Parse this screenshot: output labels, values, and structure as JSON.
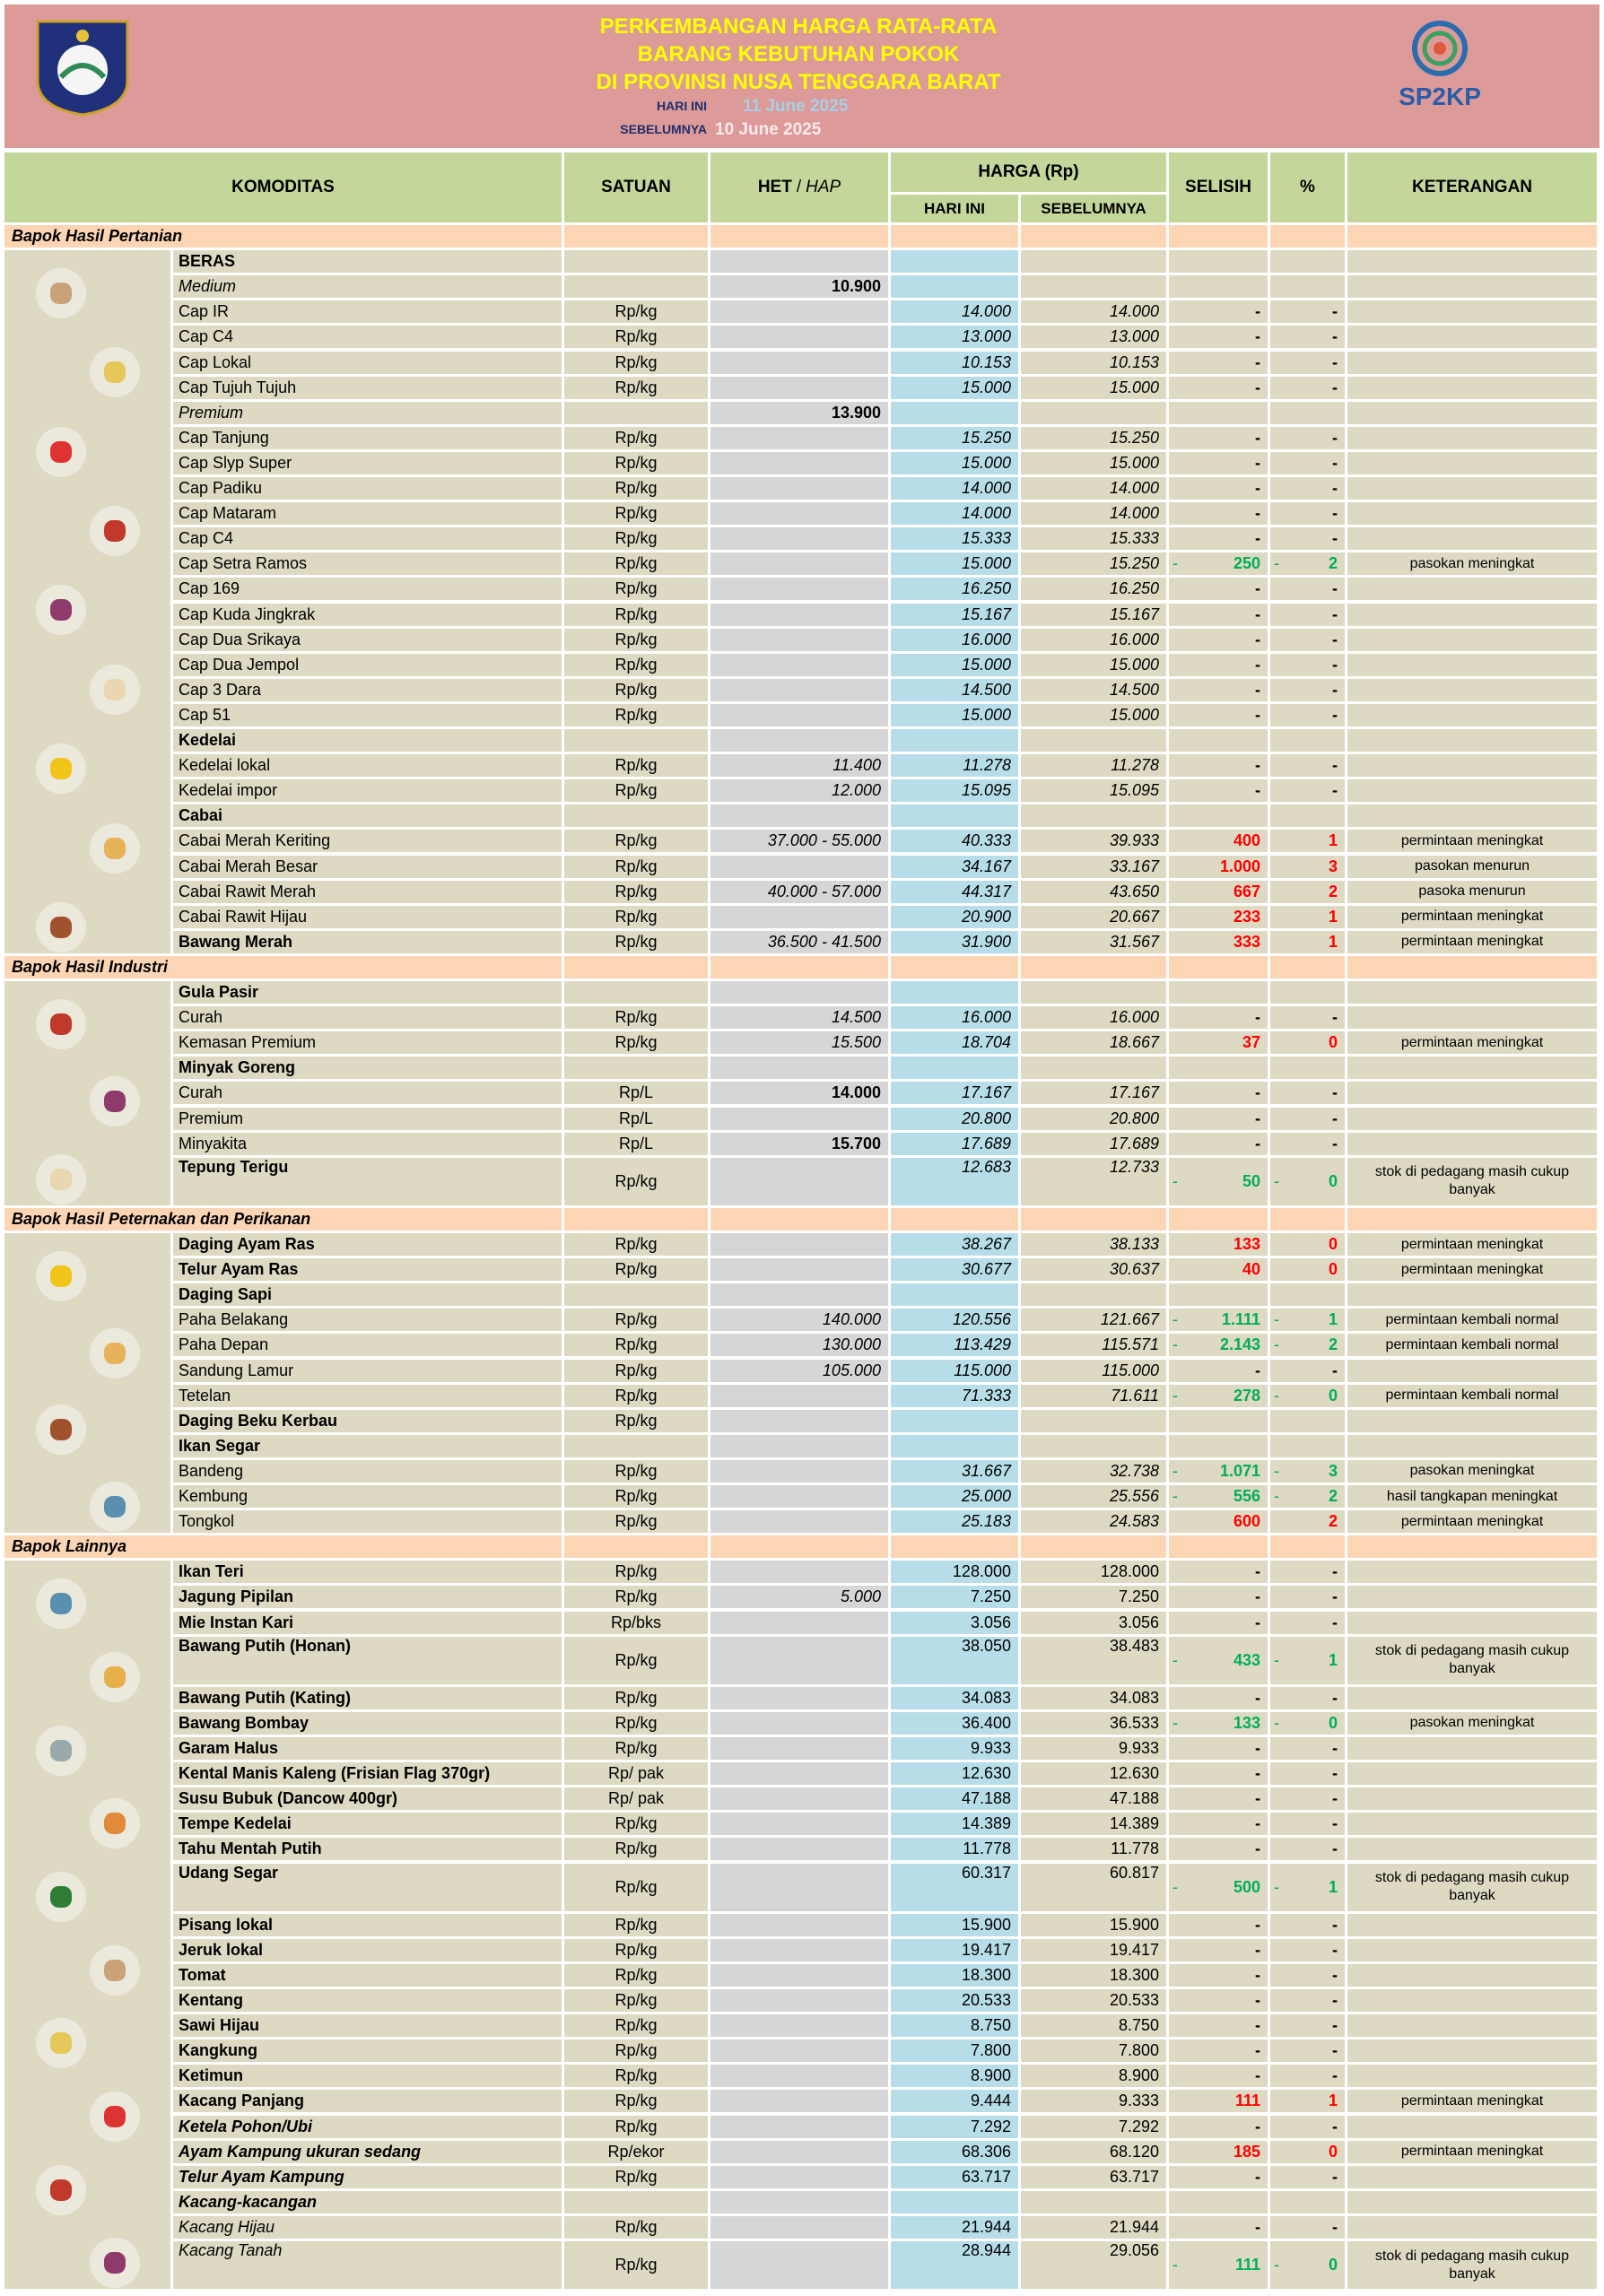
{
  "header": {
    "title_lines": [
      "PERKEMBANGAN HARGA RATA-RATA",
      "BARANG KEBUTUHAN POKOK",
      "DI PROVINSI NUSA TENGGARA BARAT"
    ],
    "today_label": "HARI INI",
    "today_date": "11 June 2025",
    "previous_label": "SEBELUMNYA",
    "previous_date": "10 June 2025",
    "logo_text": "SP2KP"
  },
  "table": {
    "columns": {
      "commodity": "KOMODITAS",
      "unit": "SATUAN",
      "het": "HET",
      "het_sep": "/",
      "hap": "HAP",
      "price": "HARGA (Rp)",
      "today": "HARI INI",
      "previous": "SEBELUMNYA",
      "diff": "SELISIH",
      "pct": "%",
      "note": "KETERANGAN"
    },
    "sections": [
      {
        "title": "Bapok Hasil Pertanian",
        "value_style": "i",
        "rows": [
          {
            "name": "BERAS",
            "style": "b"
          },
          {
            "name": "Medium",
            "style": "i",
            "het": "10.900",
            "het_style": "b"
          },
          {
            "name": "Cap IR",
            "unit": "Rp/kg",
            "today": "14.000",
            "previous": "14.000",
            "diff": "-",
            "pct": "-"
          },
          {
            "name": "Cap C4",
            "unit": "Rp/kg",
            "today": "13.000",
            "previous": "13.000",
            "diff": "-",
            "pct": "-"
          },
          {
            "name": "Cap Lokal",
            "unit": "Rp/kg",
            "today": "10.153",
            "previous": "10.153",
            "diff": "-",
            "pct": "-"
          },
          {
            "name": "Cap Tujuh Tujuh",
            "unit": "Rp/kg",
            "today": "15.000",
            "previous": "15.000",
            "diff": "-",
            "pct": "-"
          },
          {
            "name": "Premium",
            "style": "i",
            "het": "13.900",
            "het_style": "b"
          },
          {
            "name": "Cap Tanjung",
            "unit": "Rp/kg",
            "today": "15.250",
            "previous": "15.250",
            "diff": "-",
            "pct": "-"
          },
          {
            "name": "Cap Slyp Super",
            "unit": "Rp/kg",
            "today": "15.000",
            "previous": "15.000",
            "diff": "-",
            "pct": "-"
          },
          {
            "name": "Cap Padiku",
            "unit": "Rp/kg",
            "today": "14.000",
            "previous": "14.000",
            "diff": "-",
            "pct": "-"
          },
          {
            "name": "Cap Mataram",
            "unit": "Rp/kg",
            "today": "14.000",
            "previous": "14.000",
            "diff": "-",
            "pct": "-"
          },
          {
            "name": "Cap C4",
            "unit": "Rp/kg",
            "today": "15.333",
            "previous": "15.333",
            "diff": "-",
            "pct": "-"
          },
          {
            "name": "Cap Setra Ramos",
            "unit": "Rp/kg",
            "today": "15.000",
            "previous": "15.250",
            "diff_sign": "-",
            "diff": "250",
            "pct_sign": "-",
            "pct": "2",
            "note": "pasokan meningkat"
          },
          {
            "name": "Cap 169",
            "unit": "Rp/kg",
            "today": "16.250",
            "previous": "16.250",
            "diff": "-",
            "pct": "-"
          },
          {
            "name": "Cap Kuda Jingkrak",
            "unit": "Rp/kg",
            "today": "15.167",
            "previous": "15.167",
            "diff": "-",
            "pct": "-"
          },
          {
            "name": "Cap Dua Srikaya",
            "unit": "Rp/kg",
            "today": "16.000",
            "previous": "16.000",
            "diff": "-",
            "pct": "-"
          },
          {
            "name": "Cap Dua Jempol",
            "unit": "Rp/kg",
            "today": "15.000",
            "previous": "15.000",
            "diff": "-",
            "pct": "-"
          },
          {
            "name": "Cap 3 Dara",
            "unit": "Rp/kg",
            "today": "14.500",
            "previous": "14.500",
            "diff": "-",
            "pct": "-"
          },
          {
            "name": "Cap 51",
            "unit": "Rp/kg",
            "today": "15.000",
            "previous": "15.000",
            "diff": "-",
            "pct": "-"
          },
          {
            "name": "Kedelai",
            "style": "b"
          },
          {
            "name": "Kedelai lokal",
            "unit": "Rp/kg",
            "het": "11.400",
            "today": "11.278",
            "previous": "11.278",
            "diff": "-",
            "pct": "-"
          },
          {
            "name": "Kedelai impor",
            "unit": "Rp/kg",
            "het": "12.000",
            "today": "15.095",
            "previous": "15.095",
            "diff": "-",
            "pct": "-"
          },
          {
            "name": "Cabai",
            "style": "b"
          },
          {
            "name": "Cabai Merah Keriting",
            "unit": "Rp/kg",
            "het": "37.000 - 55.000",
            "today": "40.333",
            "previous": "39.933",
            "diff": "400",
            "pct": "1",
            "note": "permintaan meningkat"
          },
          {
            "name": "Cabai Merah Besar",
            "unit": "Rp/kg",
            "today": "34.167",
            "previous": "33.167",
            "diff": "1.000",
            "pct": "3",
            "note": "pasokan menurun"
          },
          {
            "name": "Cabai Rawit Merah",
            "unit": "Rp/kg",
            "het": "40.000 - 57.000",
            "today": "44.317",
            "previous": "43.650",
            "diff": "667",
            "pct": "2",
            "note": "pasoka menurun"
          },
          {
            "name": "Cabai Rawit Hijau",
            "unit": "Rp/kg",
            "today": "20.900",
            "previous": "20.667",
            "diff": "233",
            "pct": "1",
            "note": "permintaan meningkat"
          },
          {
            "name": "Bawang Merah",
            "style": "b",
            "unit": "Rp/kg",
            "het": "36.500 - 41.500",
            "today": "31.900",
            "previous": "31.567",
            "diff": "333",
            "pct": "1",
            "note": "permintaan meningkat"
          }
        ]
      },
      {
        "title": "Bapok Hasil Industri",
        "value_style": "i",
        "rows": [
          {
            "name": "Gula Pasir",
            "style": "b"
          },
          {
            "name": "Curah",
            "unit": "Rp/kg",
            "het": "14.500",
            "today": "16.000",
            "previous": "16.000",
            "diff": "-",
            "pct": "-"
          },
          {
            "name": "Kemasan Premium",
            "unit": "Rp/kg",
            "het": "15.500",
            "today": "18.704",
            "previous": "18.667",
            "diff": "37",
            "pct": "0",
            "note": "permintaan meningkat"
          },
          {
            "name": "Minyak Goreng",
            "style": "b"
          },
          {
            "name": "Curah",
            "unit": "Rp/L",
            "het": "14.000",
            "het_style": "b",
            "today": "17.167",
            "previous": "17.167",
            "diff": "-",
            "pct": "-"
          },
          {
            "name": "Premium",
            "unit": "Rp/L",
            "today": "20.800",
            "previous": "20.800",
            "diff": "-",
            "pct": "-"
          },
          {
            "name": "Minyakita",
            "unit": "Rp/L",
            "het": "15.700",
            "het_style": "b",
            "today": "17.689",
            "previous": "17.689",
            "diff": "-",
            "pct": "-"
          },
          {
            "name": "Tepung Terigu",
            "style": "b",
            "unit": "Rp/kg",
            "today": "12.683",
            "previous": "12.733",
            "diff_sign": "-",
            "diff": "50",
            "pct_sign": "-",
            "pct": "0",
            "note": "stok di pedagang masih cukup banyak"
          }
        ]
      },
      {
        "title": "Bapok Hasil Peternakan dan Perikanan",
        "value_style": "i",
        "rows": [
          {
            "name": "Daging Ayam Ras",
            "style": "b",
            "unit": "Rp/kg",
            "today": "38.267",
            "previous": "38.133",
            "diff": "133",
            "pct": "0",
            "note": "permintaan meningkat"
          },
          {
            "name": "Telur Ayam Ras",
            "style": "b",
            "unit": "Rp/kg",
            "today": "30.677",
            "previous": "30.637",
            "diff": "40",
            "pct": "0",
            "note": "permintaan meningkat"
          },
          {
            "name": "Daging Sapi",
            "style": "b"
          },
          {
            "name": "Paha Belakang",
            "unit": "Rp/kg",
            "het": "140.000",
            "today": "120.556",
            "previous": "121.667",
            "diff_sign": "-",
            "diff": "1.111",
            "pct_sign": "-",
            "pct": "1",
            "note": "permintaan kembali normal"
          },
          {
            "name": "Paha Depan",
            "unit": "Rp/kg",
            "het": "130.000",
            "today": "113.429",
            "previous": "115.571",
            "diff_sign": "-",
            "diff": "2.143",
            "pct_sign": "-",
            "pct": "2",
            "note": "permintaan kembali normal"
          },
          {
            "name": "Sandung Lamur",
            "unit": "Rp/kg",
            "het": "105.000",
            "today": "115.000",
            "previous": "115.000",
            "diff": "-",
            "pct": "-"
          },
          {
            "name": "Tetelan",
            "unit": "Rp/kg",
            "today": "71.333",
            "previous": "71.611",
            "diff_sign": "-",
            "diff": "278",
            "pct_sign": "-",
            "pct": "0",
            "note": "permintaan kembali normal"
          },
          {
            "name": "Daging Beku Kerbau",
            "style": "b",
            "unit": "Rp/kg"
          },
          {
            "name": "Ikan Segar",
            "style": "b"
          },
          {
            "name": "Bandeng",
            "unit": "Rp/kg",
            "today": "31.667",
            "previous": "32.738",
            "diff_sign": "-",
            "diff": "1.071",
            "pct_sign": "-",
            "pct": "3",
            "note": "pasokan meningkat"
          },
          {
            "name": "Kembung",
            "unit": "Rp/kg",
            "today": "25.000",
            "previous": "25.556",
            "diff_sign": "-",
            "diff": "556",
            "pct_sign": "-",
            "pct": "2",
            "note": "hasil tangkapan meningkat"
          },
          {
            "name": "Tongkol",
            "unit": "Rp/kg",
            "today": "25.183",
            "previous": "24.583",
            "diff": "600",
            "pct": "2",
            "note": "permintaan meningkat"
          }
        ]
      },
      {
        "title": "Bapok Lainnya",
        "value_style": "",
        "rows": [
          {
            "name": "Ikan Teri",
            "style": "b",
            "unit": "Rp/kg",
            "today": "128.000",
            "previous": "128.000",
            "diff": "-",
            "pct": "-"
          },
          {
            "name": "Jagung Pipilan",
            "style": "b",
            "unit": "Rp/kg",
            "het": "5.000",
            "today": "7.250",
            "previous": "7.250",
            "diff": "-",
            "pct": "-"
          },
          {
            "name": "Mie Instan Kari",
            "style": "b",
            "unit": "Rp/bks",
            "today": "3.056",
            "previous": "3.056",
            "diff": "-",
            "pct": "-"
          },
          {
            "name": "Bawang Putih (Honan)",
            "style": "b",
            "unit": "Rp/kg",
            "today": "38.050",
            "previous": "38.483",
            "diff_sign": "-",
            "diff": "433",
            "pct_sign": "-",
            "pct": "1",
            "note": "stok di pedagang masih cukup banyak"
          },
          {
            "name": "Bawang Putih (Kating)",
            "style": "b",
            "unit": "Rp/kg",
            "today": "34.083",
            "previous": "34.083",
            "diff": "-",
            "pct": "-"
          },
          {
            "name": "Bawang Bombay",
            "style": "b",
            "unit": "Rp/kg",
            "today": "36.400",
            "previous": "36.533",
            "diff_sign": "-",
            "diff": "133",
            "pct_sign": "-",
            "pct": "0",
            "note": "pasokan meningkat"
          },
          {
            "name": "Garam Halus",
            "style": "b",
            "unit": "Rp/kg",
            "today": "9.933",
            "previous": "9.933",
            "diff": "-",
            "pct": "-"
          },
          {
            "name": "Kental Manis Kaleng (Frisian Flag 370gr)",
            "style": "b",
            "unit": "Rp/ pak",
            "today": "12.630",
            "previous": "12.630",
            "diff": "-",
            "pct": "-"
          },
          {
            "name": "Susu Bubuk (Dancow 400gr)",
            "style": "b",
            "unit": "Rp/ pak",
            "today": "47.188",
            "previous": "47.188",
            "diff": "-",
            "pct": "-"
          },
          {
            "name": "Tempe Kedelai",
            "style": "b",
            "unit": "Rp/kg",
            "today": "14.389",
            "previous": "14.389",
            "diff": "-",
            "pct": "-"
          },
          {
            "name": "Tahu Mentah Putih",
            "style": "b",
            "unit": "Rp/kg",
            "today": "11.778",
            "previous": "11.778",
            "diff": "-",
            "pct": "-"
          },
          {
            "name": "Udang Segar",
            "style": "b",
            "unit": "Rp/kg",
            "today": "60.317",
            "previous": "60.817",
            "diff_sign": "-",
            "diff": "500",
            "pct_sign": "-",
            "pct": "1",
            "note": "stok di pedagang masih cukup banyak"
          },
          {
            "name": "Pisang lokal",
            "style": "b",
            "unit": "Rp/kg",
            "today": "15.900",
            "previous": "15.900",
            "diff": "-",
            "pct": "-"
          },
          {
            "name": "Jeruk lokal",
            "style": "b",
            "unit": "Rp/kg",
            "today": "19.417",
            "previous": "19.417",
            "diff": "-",
            "pct": "-"
          },
          {
            "name": "Tomat",
            "style": "b",
            "unit": "Rp/kg",
            "today": "18.300",
            "previous": "18.300",
            "diff": "-",
            "pct": "-"
          },
          {
            "name": "Kentang",
            "style": "b",
            "unit": "Rp/kg",
            "today": "20.533",
            "previous": "20.533",
            "diff": "-",
            "pct": "-"
          },
          {
            "name": "Sawi Hijau",
            "style": "b",
            "unit": "Rp/kg",
            "today": "8.750",
            "previous": "8.750",
            "diff": "-",
            "pct": "-"
          },
          {
            "name": "Kangkung",
            "style": "b",
            "unit": "Rp/kg",
            "today": "7.800",
            "previous": "7.800",
            "diff": "-",
            "pct": "-"
          },
          {
            "name": "Ketimun",
            "style": "b",
            "unit": "Rp/kg",
            "today": "8.900",
            "previous": "8.900",
            "diff": "-",
            "pct": "-"
          },
          {
            "name": "Kacang Panjang",
            "style": "b",
            "unit": "Rp/kg",
            "today": "9.444",
            "previous": "9.333",
            "diff": "111",
            "pct": "1",
            "note": "permintaan meningkat"
          },
          {
            "name": "Ketela Pohon/Ubi",
            "style": "bi",
            "unit": "Rp/kg",
            "today": "7.292",
            "previous": "7.292",
            "diff": "-",
            "pct": "-"
          },
          {
            "name": "Ayam Kampung ukuran sedang",
            "style": "bi",
            "unit": "Rp/ekor",
            "today": "68.306",
            "previous": "68.120",
            "diff": "185",
            "pct": "0",
            "note": "permintaan meningkat"
          },
          {
            "name": "Telur Ayam Kampung",
            "style": "bi",
            "unit": "Rp/kg",
            "today": "63.717",
            "previous": "63.717",
            "diff": "-",
            "pct": "-"
          },
          {
            "name": "Kacang-kacangan",
            "style": "bi"
          },
          {
            "name": "Kacang Hijau",
            "style": "i",
            "unit": "Rp/kg",
            "today": "21.944",
            "previous": "21.944",
            "diff": "-",
            "pct": "-"
          },
          {
            "name": "Kacang Tanah",
            "style": "i",
            "unit": "Rp/kg",
            "today": "28.944",
            "previous": "29.056",
            "diff_sign": "-",
            "diff": "111",
            "pct_sign": "-",
            "pct": "0",
            "note": "stok di pedagang masih cukup banyak"
          }
        ]
      }
    ]
  }
}
